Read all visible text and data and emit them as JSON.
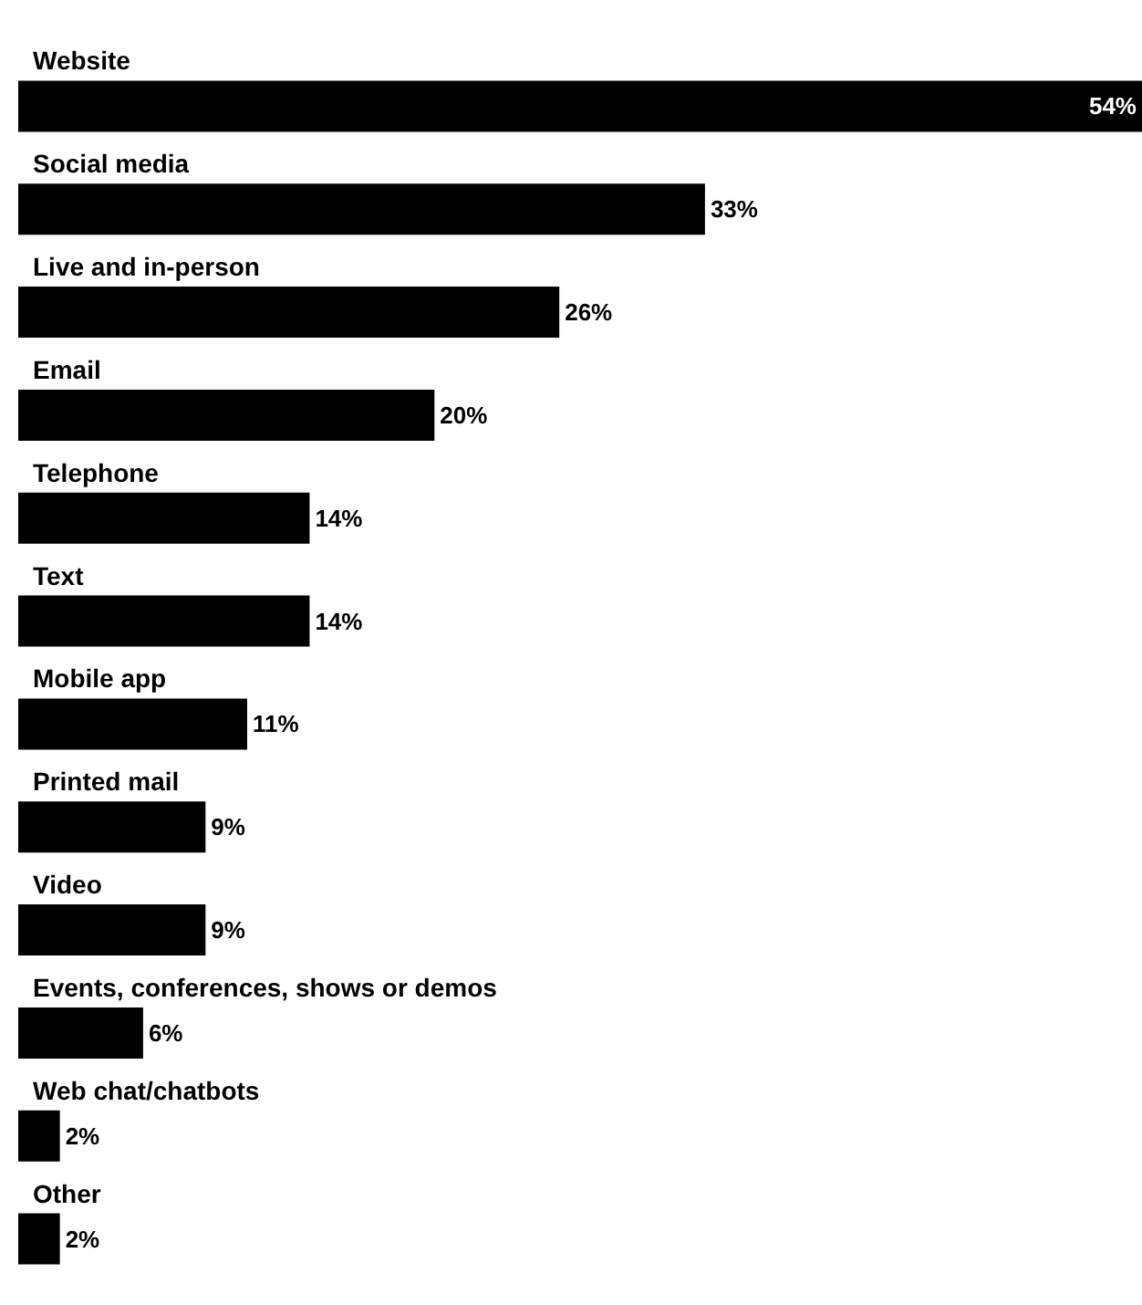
{
  "chart_data": {
    "type": "bar",
    "orientation": "horizontal",
    "categories": [
      "Website",
      "Social media",
      "Live and in-person",
      "Email",
      "Telephone",
      "Text",
      "Mobile app",
      "Printed mail",
      "Video",
      "Events, conferences, shows or demos",
      "Web chat/chatbots",
      "Other"
    ],
    "values": [
      54,
      33,
      26,
      20,
      14,
      14,
      11,
      9,
      9,
      6,
      2,
      2
    ],
    "value_labels": [
      "54%",
      "33%",
      "26%",
      "20%",
      "14%",
      "14%",
      "11%",
      "9%",
      "9%",
      "6%",
      "2%",
      "2%"
    ],
    "color": "#000000",
    "grid": false
  }
}
